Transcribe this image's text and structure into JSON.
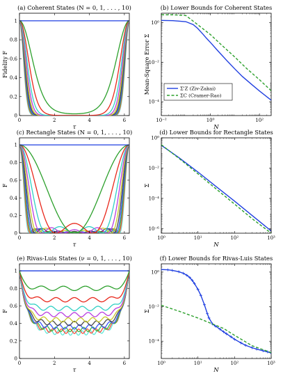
{
  "chart_data": [
    {
      "id": "a",
      "type": "line",
      "title": "(a) Coherent States (N = 0, 1, . . . , 10)",
      "xlabel": "τ",
      "ylabel": "Fidelity F",
      "xscale": "linear",
      "yscale": "linear",
      "xlim": [
        0,
        6.283
      ],
      "ylim": [
        0,
        1.08
      ],
      "xticks": [
        0,
        2,
        4,
        6
      ],
      "yticks": [
        0,
        0.2,
        0.4,
        0.6,
        0.8,
        1
      ],
      "grid": false,
      "family": "coherent",
      "n_values": [
        0,
        1,
        2,
        3,
        4,
        5,
        6,
        7,
        8,
        9,
        10
      ]
    },
    {
      "id": "b",
      "type": "line",
      "title": "(b) Lower Bounds for Coherent States",
      "xlabel": "N",
      "ylabel": "Mean-Square Error Σ",
      "xscale": "log",
      "yscale": "log",
      "xlim": [
        0.01,
        300
      ],
      "ylim": [
        2e-05,
        3
      ],
      "xticks": [
        0.01,
        1,
        100
      ],
      "xtick_labels": [
        "10⁻²",
        "10⁰",
        "10²"
      ],
      "yticks": [
        0.0001,
        0.01,
        1
      ],
      "ytick_labels": [
        "10⁻⁴",
        "10⁻²",
        "10⁰"
      ],
      "legend": {
        "placement": "bottom-left",
        "entries": [
          "Σ'Z (Ziv-Zakai)",
          "ΣC (Cramer-Rao)"
        ]
      },
      "series": [
        {
          "name": "Σ'Z (Ziv-Zakai)",
          "style": "solid",
          "color": "#1f3fe0",
          "x": [
            0.01,
            0.03,
            0.1,
            0.2,
            0.3,
            0.5,
            0.7,
            1,
            2,
            3,
            5,
            10,
            20,
            50,
            100,
            300
          ],
          "y": [
            1.3,
            1.26,
            1.12,
            0.8,
            0.52,
            0.26,
            0.16,
            0.1,
            0.038,
            0.022,
            0.011,
            0.0045,
            0.0019,
            0.00072,
            0.00035,
            0.00012
          ]
        },
        {
          "name": "ΣC (Cramer-Rao)",
          "style": "dashed",
          "color": "#2ca02c",
          "x": [
            0.01,
            0.03,
            0.1,
            0.3,
            1,
            3,
            10,
            30,
            100,
            300
          ],
          "y": [
            2.5,
            2.5,
            2.3,
            0.8,
            0.25,
            0.07,
            0.018,
            0.0048,
            0.0013,
            0.00036
          ]
        }
      ]
    },
    {
      "id": "c",
      "type": "line",
      "title": "(c) Rectangle States (N = 0, 1, . . . , 10)",
      "xlabel": "τ",
      "ylabel": "F",
      "xscale": "linear",
      "yscale": "linear",
      "xlim": [
        0,
        6.283
      ],
      "ylim": [
        0,
        1.08
      ],
      "xticks": [
        0,
        2,
        4,
        6
      ],
      "yticks": [
        0,
        0.2,
        0.4,
        0.6,
        0.8,
        1
      ],
      "grid": false,
      "family": "rectangle",
      "n_values": [
        0,
        1,
        2,
        3,
        4,
        5,
        6,
        7,
        8,
        9,
        10
      ]
    },
    {
      "id": "d",
      "type": "line",
      "title": "(d) Lower Bounds for Rectangle States",
      "xlabel": "N",
      "ylabel": "Σ",
      "xscale": "log",
      "yscale": "log",
      "xlim": [
        1,
        1000
      ],
      "ylim": [
        5e-07,
        1
      ],
      "xticks": [
        1,
        10,
        100,
        1000
      ],
      "xtick_labels": [
        "10⁰",
        "10¹",
        "10²",
        "10³"
      ],
      "yticks": [
        1e-06,
        0.0001,
        0.01,
        1
      ],
      "ytick_labels": [
        "10⁻⁶",
        "10⁻⁴",
        "10⁻²",
        "10⁰"
      ],
      "series": [
        {
          "name": "Σ'Z (Ziv-Zakai)",
          "style": "solid",
          "color": "#1f3fe0",
          "x": [
            1,
            3,
            10,
            30,
            100,
            300,
            1000
          ],
          "y": [
            0.32,
            0.05,
            0.0055,
            0.00066,
            6.6e-05,
            7.5e-06,
            7e-07
          ]
        },
        {
          "name": "ΣC (Cramer-Rao)",
          "style": "dashed",
          "color": "#2ca02c",
          "x": [
            1,
            3,
            10,
            30,
            100,
            300,
            1000
          ],
          "y": [
            0.35,
            0.045,
            0.0042,
            0.00046,
            4.2e-05,
            4.6e-06,
            4e-07
          ]
        }
      ]
    },
    {
      "id": "e",
      "type": "line",
      "title": "(e) Rivas-Luis States (ν = 0, 1, . . . , 10)",
      "xlabel": "τ",
      "ylabel": "F",
      "xscale": "linear",
      "yscale": "linear",
      "xlim": [
        0,
        6.283
      ],
      "ylim": [
        0,
        1.08
      ],
      "xticks": [
        0,
        2,
        4,
        6
      ],
      "yticks": [
        0,
        0.2,
        0.4,
        0.6,
        0.8,
        1
      ],
      "grid": false,
      "family": "rivas-luis",
      "levels": [
        1,
        0.8,
        0.67,
        0.57,
        0.5,
        0.44,
        0.4,
        0.36,
        0.33,
        0.31,
        0.29
      ]
    },
    {
      "id": "f",
      "type": "line",
      "title": "(f) Lower Bounds for Rivas-Luis States",
      "xlabel": "N",
      "ylabel": "Σ",
      "xscale": "log",
      "yscale": "log",
      "xlim": [
        1,
        1000
      ],
      "ylim": [
        1e-05,
        3
      ],
      "xticks": [
        1,
        10,
        100,
        1000
      ],
      "xtick_labels": [
        "10⁰",
        "10¹",
        "10²",
        "10³"
      ],
      "yticks": [
        0.0001,
        0.01,
        1
      ],
      "ytick_labels": [
        "10⁻⁴",
        "10⁻²",
        "10⁰"
      ],
      "series": [
        {
          "name": "Σ'Z (Ziv-Zakai)",
          "style": "solid-plus",
          "color": "#1f3fe0",
          "x": [
            1,
            1.5,
            2,
            3,
            4,
            5,
            6,
            7,
            8,
            10,
            12,
            15,
            18,
            20,
            25,
            30,
            40,
            50,
            60,
            80,
            100,
            150,
            200,
            300,
            400,
            600,
            800,
            1000
          ],
          "y": [
            1.4,
            1.35,
            1.25,
            1.05,
            0.85,
            0.65,
            0.48,
            0.33,
            0.22,
            0.1,
            0.045,
            0.013,
            0.004,
            0.0022,
            0.001,
            0.00075,
            0.0005,
            0.00035,
            0.00027,
            0.00018,
            0.00013,
            8e-05,
            5.8e-05,
            4.2e-05,
            3.5e-05,
            2.8e-05,
            2.4e-05,
            2.1e-05
          ]
        },
        {
          "name": "ΣC (Cramer-Rao)",
          "style": "dashed",
          "color": "#2ca02c",
          "x": [
            1,
            3,
            10,
            30,
            50,
            100,
            300,
            1000
          ],
          "y": [
            0.012,
            0.0055,
            0.0022,
            0.00085,
            0.00055,
            0.00022,
            5.5e-05,
            2.2e-05
          ]
        }
      ]
    }
  ]
}
